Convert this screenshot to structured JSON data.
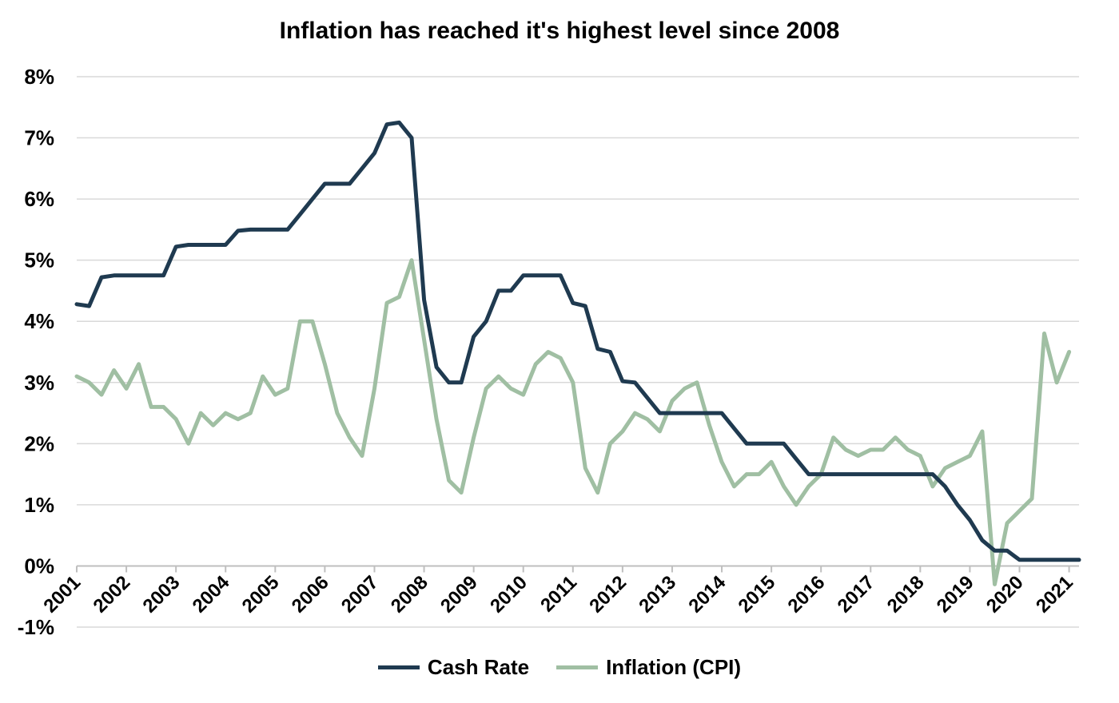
{
  "chart_data": {
    "type": "line",
    "title": "Inflation has reached it's highest level since 2008",
    "xlabel": "",
    "ylabel": "",
    "ylim": [
      -1,
      8
    ],
    "y_ticks": [
      "-1%",
      "0%",
      "1%",
      "2%",
      "3%",
      "4%",
      "5%",
      "6%",
      "7%",
      "8%"
    ],
    "y_tick_values": [
      -1,
      0,
      1,
      2,
      3,
      4,
      5,
      6,
      7,
      8
    ],
    "x_ticks": [
      "2001",
      "2002",
      "2003",
      "2004",
      "2005",
      "2006",
      "2007",
      "2008",
      "2009",
      "2010",
      "2011",
      "2012",
      "2013",
      "2014",
      "2015",
      "2016",
      "2017",
      "2018",
      "2019",
      "2020",
      "2021"
    ],
    "x_tick_values": [
      2001,
      2002,
      2003,
      2004,
      2005,
      2006,
      2007,
      2008,
      2009,
      2010,
      2011,
      2012,
      2013,
      2014,
      2015,
      2016,
      2017,
      2018,
      2019,
      2020,
      2021
    ],
    "xlim": [
      2001,
      2021.2
    ],
    "grid": true,
    "legend_position": "bottom",
    "series": [
      {
        "name": "Cash Rate",
        "color": "#1f3a50",
        "points": [
          [
            2001.0,
            4.28
          ],
          [
            2001.25,
            4.25
          ],
          [
            2001.5,
            4.72
          ],
          [
            2001.75,
            4.75
          ],
          [
            2002.0,
            4.75
          ],
          [
            2002.25,
            4.75
          ],
          [
            2002.5,
            4.75
          ],
          [
            2002.75,
            4.75
          ],
          [
            2003.0,
            5.22
          ],
          [
            2003.25,
            5.25
          ],
          [
            2003.5,
            5.25
          ],
          [
            2003.75,
            5.25
          ],
          [
            2004.0,
            5.25
          ],
          [
            2004.25,
            5.48
          ],
          [
            2004.5,
            5.5
          ],
          [
            2004.75,
            5.5
          ],
          [
            2005.0,
            5.5
          ],
          [
            2005.25,
            5.5
          ],
          [
            2005.5,
            5.75
          ],
          [
            2005.75,
            6.0
          ],
          [
            2006.0,
            6.25
          ],
          [
            2006.25,
            6.25
          ],
          [
            2006.5,
            6.25
          ],
          [
            2006.75,
            6.5
          ],
          [
            2007.0,
            6.75
          ],
          [
            2007.25,
            7.22
          ],
          [
            2007.5,
            7.25
          ],
          [
            2007.75,
            7.0
          ],
          [
            2008.0,
            4.35
          ],
          [
            2008.25,
            3.25
          ],
          [
            2008.5,
            3.0
          ],
          [
            2008.75,
            3.0
          ],
          [
            2009.0,
            3.75
          ],
          [
            2009.25,
            4.0
          ],
          [
            2009.5,
            4.5
          ],
          [
            2009.75,
            4.5
          ],
          [
            2010.0,
            4.75
          ],
          [
            2010.25,
            4.75
          ],
          [
            2010.5,
            4.75
          ],
          [
            2010.75,
            4.75
          ],
          [
            2011.0,
            4.3
          ],
          [
            2011.25,
            4.25
          ],
          [
            2011.5,
            3.55
          ],
          [
            2011.75,
            3.5
          ],
          [
            2012.0,
            3.02
          ],
          [
            2012.25,
            3.0
          ],
          [
            2012.5,
            2.75
          ],
          [
            2012.75,
            2.5
          ],
          [
            2013.0,
            2.5
          ],
          [
            2013.25,
            2.5
          ],
          [
            2013.5,
            2.5
          ],
          [
            2013.75,
            2.5
          ],
          [
            2014.0,
            2.5
          ],
          [
            2014.25,
            2.25
          ],
          [
            2014.5,
            2.0
          ],
          [
            2014.75,
            2.0
          ],
          [
            2015.0,
            2.0
          ],
          [
            2015.25,
            2.0
          ],
          [
            2015.5,
            1.75
          ],
          [
            2015.75,
            1.5
          ],
          [
            2016.0,
            1.5
          ],
          [
            2016.25,
            1.5
          ],
          [
            2016.5,
            1.5
          ],
          [
            2016.75,
            1.5
          ],
          [
            2017.0,
            1.5
          ],
          [
            2017.25,
            1.5
          ],
          [
            2017.5,
            1.5
          ],
          [
            2017.75,
            1.5
          ],
          [
            2018.0,
            1.5
          ],
          [
            2018.25,
            1.5
          ],
          [
            2018.5,
            1.3
          ],
          [
            2018.75,
            1.0
          ],
          [
            2019.0,
            0.75
          ],
          [
            2019.25,
            0.42
          ],
          [
            2019.5,
            0.25
          ],
          [
            2019.75,
            0.25
          ],
          [
            2020.0,
            0.1
          ],
          [
            2020.25,
            0.1
          ],
          [
            2020.5,
            0.1
          ],
          [
            2020.75,
            0.1
          ],
          [
            2021.0,
            0.1
          ],
          [
            2021.2,
            0.1
          ]
        ]
      },
      {
        "name": "Inflation (CPI)",
        "color": "#a0bfa3",
        "points": [
          [
            2001.0,
            3.1
          ],
          [
            2001.25,
            3.0
          ],
          [
            2001.5,
            2.8
          ],
          [
            2001.75,
            3.2
          ],
          [
            2002.0,
            2.9
          ],
          [
            2002.25,
            3.3
          ],
          [
            2002.5,
            2.6
          ],
          [
            2002.75,
            2.6
          ],
          [
            2003.0,
            2.4
          ],
          [
            2003.25,
            2.0
          ],
          [
            2003.5,
            2.5
          ],
          [
            2003.75,
            2.3
          ],
          [
            2004.0,
            2.5
          ],
          [
            2004.25,
            2.4
          ],
          [
            2004.5,
            2.5
          ],
          [
            2004.75,
            3.1
          ],
          [
            2005.0,
            2.8
          ],
          [
            2005.25,
            2.9
          ],
          [
            2005.5,
            4.0
          ],
          [
            2005.75,
            4.0
          ],
          [
            2006.0,
            3.3
          ],
          [
            2006.25,
            2.5
          ],
          [
            2006.5,
            2.1
          ],
          [
            2006.75,
            1.8
          ],
          [
            2007.0,
            2.9
          ],
          [
            2007.25,
            4.3
          ],
          [
            2007.5,
            4.4
          ],
          [
            2007.75,
            5.0
          ],
          [
            2008.0,
            3.7
          ],
          [
            2008.25,
            2.4
          ],
          [
            2008.5,
            1.4
          ],
          [
            2008.75,
            1.2
          ],
          [
            2009.0,
            2.1
          ],
          [
            2009.25,
            2.9
          ],
          [
            2009.5,
            3.1
          ],
          [
            2009.75,
            2.9
          ],
          [
            2010.0,
            2.8
          ],
          [
            2010.25,
            3.3
          ],
          [
            2010.5,
            3.5
          ],
          [
            2010.75,
            3.4
          ],
          [
            2011.0,
            3.0
          ],
          [
            2011.25,
            1.6
          ],
          [
            2011.5,
            1.2
          ],
          [
            2011.75,
            2.0
          ],
          [
            2012.0,
            2.2
          ],
          [
            2012.25,
            2.5
          ],
          [
            2012.5,
            2.4
          ],
          [
            2012.75,
            2.2
          ],
          [
            2013.0,
            2.7
          ],
          [
            2013.25,
            2.9
          ],
          [
            2013.5,
            3.0
          ],
          [
            2013.75,
            2.3
          ],
          [
            2014.0,
            1.7
          ],
          [
            2014.25,
            1.3
          ],
          [
            2014.5,
            1.5
          ],
          [
            2014.75,
            1.5
          ],
          [
            2015.0,
            1.7
          ],
          [
            2015.25,
            1.3
          ],
          [
            2015.5,
            1.0
          ],
          [
            2015.75,
            1.3
          ],
          [
            2016.0,
            1.5
          ],
          [
            2016.25,
            2.1
          ],
          [
            2016.5,
            1.9
          ],
          [
            2016.75,
            1.8
          ],
          [
            2017.0,
            1.9
          ],
          [
            2017.25,
            1.9
          ],
          [
            2017.5,
            2.1
          ],
          [
            2017.75,
            1.9
          ],
          [
            2018.0,
            1.8
          ],
          [
            2018.25,
            1.3
          ],
          [
            2018.5,
            1.6
          ],
          [
            2018.75,
            1.7
          ],
          [
            2019.0,
            1.8
          ],
          [
            2019.25,
            2.2
          ],
          [
            2019.5,
            -0.3
          ],
          [
            2019.75,
            0.7
          ],
          [
            2020.0,
            0.9
          ],
          [
            2020.25,
            1.1
          ],
          [
            2020.5,
            3.8
          ],
          [
            2020.75,
            3.0
          ],
          [
            2021.0,
            3.5
          ]
        ]
      }
    ]
  }
}
